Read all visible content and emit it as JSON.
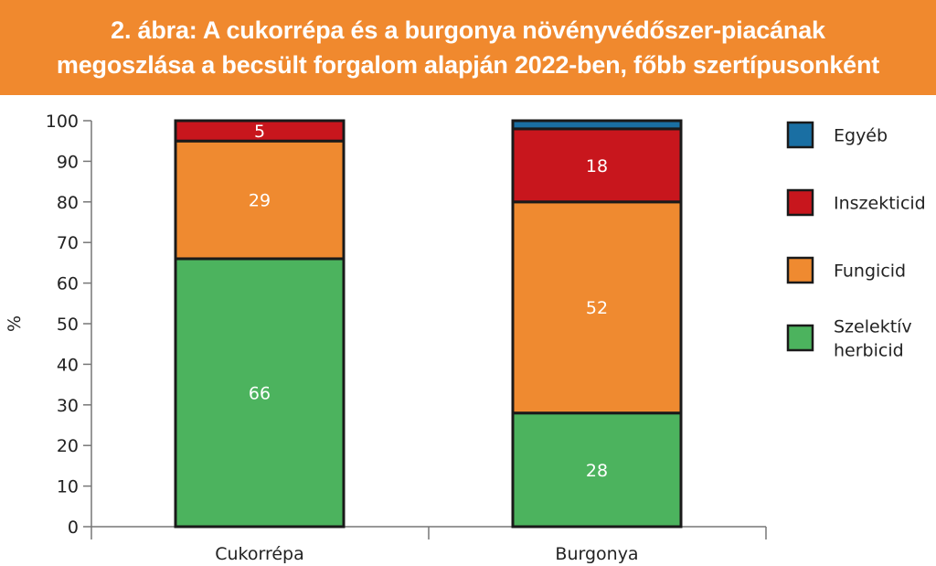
{
  "title": {
    "line1": "2. ábra: A cukorrépa és a burgonya növényvédőszer-piacának",
    "line2": "megoszlása a becsült forgalom alapján 2022-ben, főbb szertípusonként"
  },
  "colors": {
    "title_bg": "#f0892e",
    "Szelektív herbicid": "#4cb35e",
    "Fungicid": "#ef8a30",
    "Inszekticid": "#c8161d",
    "Egyéb": "#1a6fa3"
  },
  "chart_data": {
    "type": "bar",
    "stacked": true,
    "categories": [
      "Cukorrépa",
      "Burgonya"
    ],
    "ylabel": "%",
    "ylim": [
      0,
      100
    ],
    "yticks": [
      0,
      10,
      20,
      30,
      40,
      50,
      60,
      70,
      80,
      90,
      100
    ],
    "series": [
      {
        "name": "Szelektív herbicid",
        "values": [
          66,
          28
        ],
        "labels": [
          "66",
          "28"
        ]
      },
      {
        "name": "Fungicid",
        "values": [
          29,
          52
        ],
        "labels": [
          "29",
          "52"
        ]
      },
      {
        "name": "Inszekticid",
        "values": [
          5,
          18
        ],
        "labels": [
          "5",
          "18"
        ]
      },
      {
        "name": "Egyéb",
        "values": [
          0,
          2
        ],
        "labels": [
          "",
          ""
        ]
      }
    ],
    "legend": {
      "placement": "right",
      "entries": [
        {
          "series": "Egyéb",
          "lines": [
            "Egyéb"
          ]
        },
        {
          "series": "Inszekticid",
          "lines": [
            "Inszekticid"
          ]
        },
        {
          "series": "Fungicid",
          "lines": [
            "Fungicid"
          ]
        },
        {
          "series": "Szelektív herbicid",
          "lines": [
            "Szelektív",
            "herbicid"
          ]
        }
      ]
    },
    "grid": false
  }
}
